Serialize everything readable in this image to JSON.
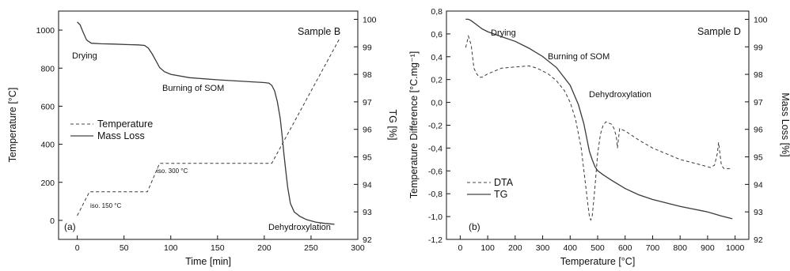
{
  "chart_data": [
    {
      "type": "line",
      "panel_label": "(a)",
      "sample_label": "Sample B",
      "xlabel": "Time [min]",
      "ylabel": "Temperature [°C]",
      "y2label": "TG [%]",
      "xlim": [
        -20,
        300
      ],
      "ylim": [
        -100,
        1100
      ],
      "y2lim": [
        92,
        100.3
      ],
      "xticks": [
        0,
        50,
        100,
        150,
        200,
        250,
        300
      ],
      "yticks": [
        0,
        200,
        400,
        600,
        800,
        1000
      ],
      "y2ticks": [
        92,
        93,
        94,
        95,
        96,
        97,
        98,
        99,
        100
      ],
      "legend": {
        "position": "center-left",
        "entries": [
          "Temperature",
          "Mass Loss"
        ]
      },
      "annotations": [
        {
          "text": "Drying"
        },
        {
          "text": "Burning of SOM"
        },
        {
          "text": "Dehydroxylation"
        },
        {
          "text": "iso. 150 °C"
        },
        {
          "text": "iso. 300 °C"
        }
      ],
      "series": [
        {
          "name": "Temperature",
          "style": "dashed",
          "axis": "left",
          "x": [
            0,
            13,
            75,
            88,
            208,
            281
          ],
          "y": [
            25,
            150,
            150,
            300,
            300,
            960
          ]
        },
        {
          "name": "Mass Loss",
          "style": "solid",
          "axis": "right",
          "x": [
            0,
            3,
            6,
            10,
            15,
            25,
            40,
            55,
            65,
            72,
            76,
            80,
            84,
            88,
            93,
            100,
            120,
            150,
            180,
            200,
            205,
            208,
            211,
            214,
            217,
            219,
            221,
            223,
            225,
            228,
            232,
            238,
            245,
            255,
            265,
            275
          ],
          "y": [
            99.9,
            99.8,
            99.55,
            99.25,
            99.13,
            99.11,
            99.1,
            99.08,
            99.07,
            99.05,
            98.95,
            98.75,
            98.5,
            98.25,
            98.1,
            98.0,
            97.88,
            97.8,
            97.74,
            97.7,
            97.68,
            97.6,
            97.4,
            97.0,
            96.4,
            95.8,
            95.1,
            94.5,
            93.9,
            93.3,
            93.0,
            92.84,
            92.72,
            92.63,
            92.58,
            92.55
          ]
        }
      ]
    },
    {
      "type": "line",
      "panel_label": "(b)",
      "sample_label": "Sample D",
      "xlabel": "Temperature [°C]",
      "ylabel": "Temperature Difference [°C.mg⁻¹]",
      "y2label": "Mass Loss [%]",
      "xlim": [
        -50,
        1050
      ],
      "ylim": [
        -1.2,
        0.8
      ],
      "y2lim": [
        92,
        100.3
      ],
      "xticks": [
        0,
        100,
        200,
        300,
        400,
        500,
        600,
        700,
        800,
        900,
        1000
      ],
      "yticks": [
        -1.2,
        -1.0,
        -0.8,
        -0.6,
        -0.4,
        -0.2,
        0.0,
        0.2,
        0.4,
        0.6,
        0.8
      ],
      "ytick_labels": [
        "-1,2",
        "-1,0",
        "-0,8",
        "-0,6",
        "-0,4",
        "-0,2",
        "0,0",
        "0,2",
        "0,4",
        "0,6",
        "0,8"
      ],
      "y2ticks": [
        92,
        93,
        94,
        95,
        96,
        97,
        98,
        99,
        100
      ],
      "legend": {
        "position": "lower-left",
        "entries": [
          "DTA",
          "TG"
        ]
      },
      "annotations": [
        {
          "text": "Drying"
        },
        {
          "text": "Burning of SOM"
        },
        {
          "text": "Dehydroxylation"
        }
      ],
      "series": [
        {
          "name": "DTA",
          "style": "dashed",
          "axis": "left",
          "x": [
            20,
            30,
            40,
            50,
            60,
            70,
            80,
            100,
            150,
            200,
            250,
            280,
            320,
            350,
            380,
            400,
            420,
            440,
            455,
            465,
            470,
            475,
            480,
            490,
            500,
            510,
            520,
            530,
            550,
            560,
            568,
            572,
            580,
            600,
            650,
            700,
            800,
            880,
            910,
            925,
            935,
            940,
            945,
            950,
            960,
            975,
            990
          ],
          "y": [
            0.48,
            0.58,
            0.5,
            0.3,
            0.25,
            0.22,
            0.22,
            0.25,
            0.3,
            0.31,
            0.32,
            0.3,
            0.25,
            0.19,
            0.1,
            0.0,
            -0.15,
            -0.4,
            -0.7,
            -0.9,
            -1.0,
            -1.03,
            -1.0,
            -0.75,
            -0.45,
            -0.28,
            -0.2,
            -0.17,
            -0.19,
            -0.23,
            -0.3,
            -0.4,
            -0.23,
            -0.25,
            -0.33,
            -0.4,
            -0.5,
            -0.55,
            -0.57,
            -0.55,
            -0.45,
            -0.35,
            -0.45,
            -0.55,
            -0.58,
            -0.58,
            -0.58
          ]
        },
        {
          "name": "TG",
          "style": "solid",
          "axis": "right",
          "x": [
            20,
            30,
            40,
            60,
            80,
            100,
            150,
            200,
            250,
            300,
            350,
            400,
            430,
            450,
            470,
            480,
            490,
            500,
            520,
            550,
            600,
            650,
            700,
            800,
            900,
            950,
            990
          ],
          "y": [
            100.0,
            100.0,
            99.95,
            99.8,
            99.65,
            99.55,
            99.37,
            99.2,
            98.95,
            98.65,
            98.25,
            97.6,
            96.9,
            96.2,
            95.2,
            94.9,
            94.65,
            94.5,
            94.35,
            94.15,
            93.85,
            93.62,
            93.45,
            93.2,
            93.0,
            92.85,
            92.75
          ]
        }
      ]
    }
  ]
}
